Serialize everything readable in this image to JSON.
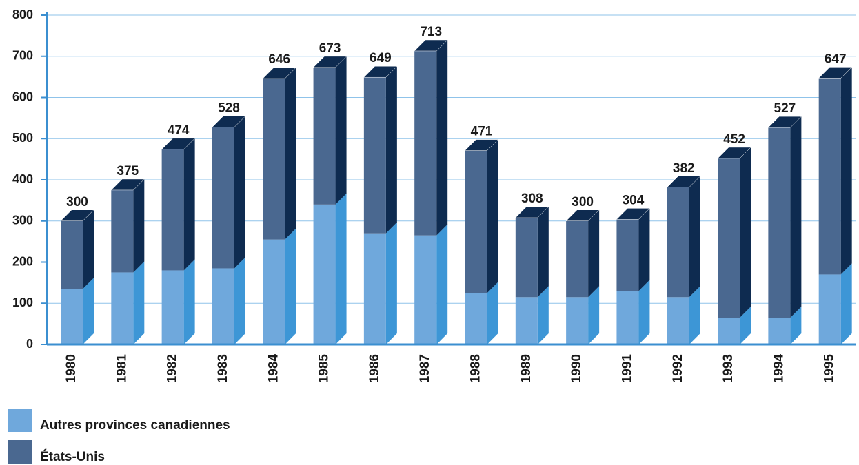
{
  "chart_data": {
    "type": "stacked-bar-3d",
    "categories": [
      "1980",
      "1981",
      "1982",
      "1983",
      "1984",
      "1985",
      "1986",
      "1987",
      "1988",
      "1989",
      "1990",
      "1991",
      "1992",
      "1993",
      "1994",
      "1995"
    ],
    "series": [
      {
        "name": "Autres provinces canadiennes",
        "color": "#6fa8dc",
        "values": [
          135,
          175,
          180,
          185,
          255,
          340,
          270,
          265,
          125,
          115,
          115,
          130,
          115,
          65,
          65,
          170
        ]
      },
      {
        "name": "États-Unis",
        "color": "#4a6890",
        "values": [
          165,
          200,
          294,
          343,
          391,
          333,
          379,
          448,
          346,
          193,
          185,
          174,
          267,
          387,
          462,
          477
        ]
      }
    ],
    "totals": [
      300,
      375,
      474,
      528,
      646,
      673,
      649,
      713,
      471,
      308,
      300,
      304,
      382,
      452,
      527,
      647
    ],
    "ylim": [
      0,
      800
    ],
    "yticks": [
      0,
      100,
      200,
      300,
      400,
      500,
      600,
      700,
      800
    ],
    "grid": true
  }
}
